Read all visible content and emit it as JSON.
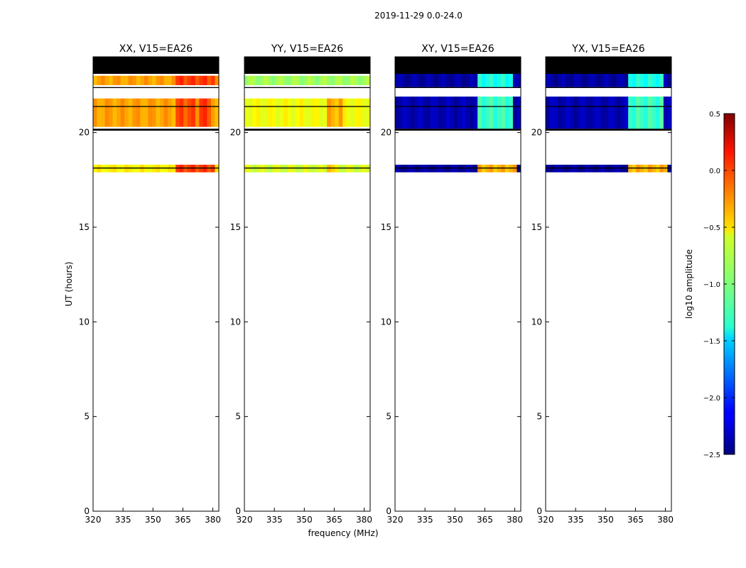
{
  "figure": {
    "suptitle": "2019-11-29 0.0-24.0",
    "xlabel": "frequency (MHz)",
    "ylabel": "UT (hours)"
  },
  "chart_data": {
    "type": "heatmap",
    "xlim": [
      320,
      383
    ],
    "ylim": [
      0,
      24
    ],
    "xticks": [
      320,
      335,
      350,
      365,
      380
    ],
    "yticks": [
      0,
      5,
      10,
      15,
      20
    ],
    "colormap": "jet",
    "background_color": "#ffffff",
    "flagged_color": "#000000",
    "colorbar": {
      "label": "log10 amplitude",
      "range": [
        -2.5,
        0.5
      ],
      "ticks": [
        0.5,
        0.0,
        -0.5,
        -1.0,
        -1.5,
        -2.0,
        -2.5
      ],
      "tick_labels": [
        "0.5",
        "0.0",
        "−0.5",
        "−1.0",
        "−1.5",
        "−2.0",
        "−2.5"
      ]
    },
    "panels": [
      {
        "title": "XX, V15=EA26",
        "bands": [
          {
            "ut": [
              17.9,
              18.3
            ],
            "base": -0.6,
            "hot_freqs": [
              [
                362,
                381,
                -0.05
              ]
            ]
          },
          {
            "ut": [
              20.3,
              21.8
            ],
            "base": -0.35,
            "hot_freqs": [
              [
                362,
                372,
                -0.1
              ],
              [
                374,
                380,
                -0.05
              ]
            ]
          },
          {
            "ut": [
              22.5,
              23.0
            ],
            "base": -0.35,
            "hot_freqs": [
              [
                362,
                381,
                -0.05
              ]
            ]
          }
        ],
        "flagged": [
          {
            "ut": [
              23.1,
              24.0
            ]
          },
          {
            "ut": [
              20.1,
              20.2
            ]
          },
          {
            "ut": [
              21.35,
              21.4
            ]
          },
          {
            "ut": [
              22.35,
              22.4
            ]
          },
          {
            "ut": [
              18.1,
              18.15
            ]
          }
        ]
      },
      {
        "title": "YY, V15=EA26",
        "bands": [
          {
            "ut": [
              17.9,
              18.3
            ],
            "base": -0.75,
            "hot_freqs": [
              [
                362,
                368,
                -0.5
              ]
            ]
          },
          {
            "ut": [
              20.3,
              21.8
            ],
            "base": -0.65,
            "hot_freqs": [
              [
                362,
                370,
                -0.4
              ]
            ]
          },
          {
            "ut": [
              22.5,
              23.0
            ],
            "base": -0.9,
            "hot_freqs": []
          }
        ],
        "flagged": [
          {
            "ut": [
              23.1,
              24.0
            ]
          },
          {
            "ut": [
              20.1,
              20.2
            ]
          },
          {
            "ut": [
              21.35,
              21.4
            ]
          },
          {
            "ut": [
              22.35,
              22.4
            ]
          },
          {
            "ut": [
              18.1,
              18.15
            ]
          }
        ]
      },
      {
        "title": "XY, V15=EA26",
        "bands": [
          {
            "ut": [
              17.9,
              18.3
            ],
            "base": -2.4,
            "hot_freqs": [
              [
                362,
                381,
                -0.4
              ]
            ]
          },
          {
            "ut": [
              20.2,
              21.9
            ],
            "base": -2.35,
            "hot_freqs": [
              [
                362,
                380,
                -1.2
              ]
            ]
          },
          {
            "ut": [
              22.4,
              23.1
            ],
            "base": -2.4,
            "hot_freqs": [
              [
                362,
                380,
                -1.3
              ]
            ]
          }
        ],
        "flagged": [
          {
            "ut": [
              23.1,
              24.0
            ]
          },
          {
            "ut": [
              20.1,
              20.2
            ]
          },
          {
            "ut": [
              21.35,
              21.4
            ]
          },
          {
            "ut": [
              22.35,
              22.4
            ]
          },
          {
            "ut": [
              18.1,
              18.15
            ]
          }
        ]
      },
      {
        "title": "YX, V15=EA26",
        "bands": [
          {
            "ut": [
              17.9,
              18.3
            ],
            "base": -2.4,
            "hot_freqs": [
              [
                362,
                381,
                -0.4
              ]
            ]
          },
          {
            "ut": [
              20.2,
              21.9
            ],
            "base": -2.35,
            "hot_freqs": [
              [
                362,
                380,
                -1.2
              ]
            ]
          },
          {
            "ut": [
              22.4,
              23.1
            ],
            "base": -2.4,
            "hot_freqs": [
              [
                362,
                380,
                -1.3
              ]
            ]
          }
        ],
        "flagged": [
          {
            "ut": [
              23.1,
              24.0
            ]
          },
          {
            "ut": [
              20.1,
              20.2
            ]
          },
          {
            "ut": [
              21.35,
              21.4
            ]
          },
          {
            "ut": [
              22.35,
              22.4
            ]
          },
          {
            "ut": [
              18.1,
              18.15
            ]
          }
        ]
      }
    ]
  }
}
